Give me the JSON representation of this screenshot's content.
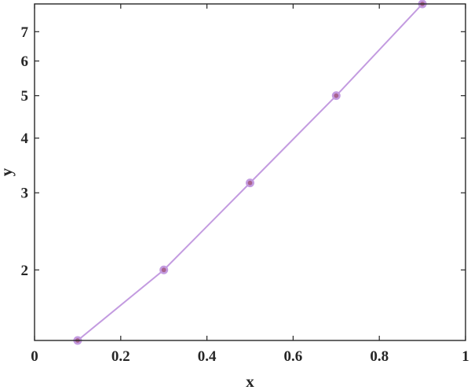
{
  "chart_data": {
    "type": "line",
    "title": "",
    "xlabel": "x",
    "ylabel": "y",
    "xlim": [
      0,
      1
    ],
    "ylim": [
      1.38,
      8.1
    ],
    "yscale": "log",
    "grid": false,
    "legend": "none",
    "x_ticks": [
      0,
      0.2,
      0.4,
      0.6,
      0.8,
      1
    ],
    "x_tick_labels": [
      "0",
      "0.2",
      "0.4",
      "0.6",
      "0.8",
      "1"
    ],
    "y_ticks": [
      2,
      3,
      4,
      5,
      6,
      7
    ],
    "y_tick_labels": [
      "2",
      "3",
      "4",
      "5",
      "6",
      "7"
    ],
    "series": [
      {
        "color": "#c39be0",
        "marker_color": "#a9648f",
        "x": [
          0.1,
          0.3,
          0.5,
          0.7,
          0.9
        ],
        "y": [
          1.38,
          2.0,
          3.16,
          5.0,
          8.1
        ]
      }
    ]
  }
}
